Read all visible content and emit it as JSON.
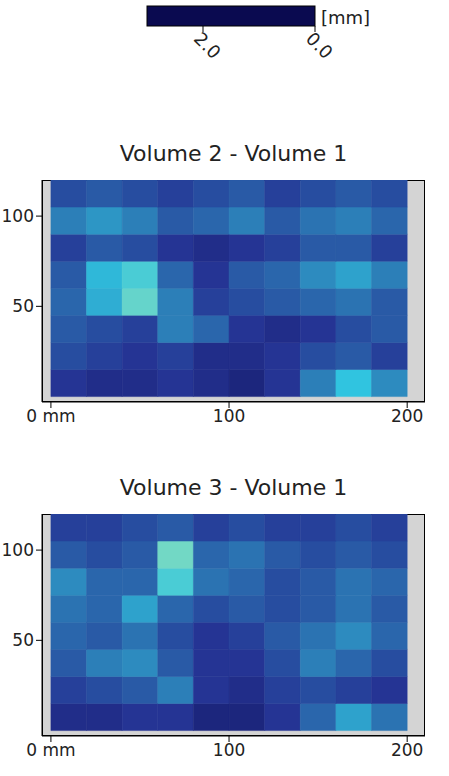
{
  "colorbar": {
    "label": "[mm]",
    "range": [
      0,
      3
    ],
    "ticks": [
      {
        "value": 2,
        "label": "2.0"
      },
      {
        "value": 0,
        "label": "0.0"
      }
    ],
    "colors": [
      "#0a0a50",
      "#253494",
      "#2c7fb8",
      "#30c4e0",
      "#7fdcc0",
      "#dcf08c"
    ]
  },
  "chart_data": [
    {
      "type": "heatmap",
      "title": "Volume 2 - Volume 1",
      "x": [
        10,
        30,
        50,
        70,
        90,
        110,
        130,
        150,
        170,
        190
      ],
      "y": [
        7.5,
        22.5,
        37.5,
        52.5,
        67.5,
        82.5,
        97.5,
        112.5
      ],
      "values": [
        [
          0.6,
          0.5,
          0.5,
          0.6,
          0.5,
          0.4,
          0.6,
          1.2,
          1.8,
          1.3
        ],
        [
          0.8,
          0.7,
          0.6,
          0.7,
          0.5,
          0.5,
          0.6,
          0.8,
          0.9,
          0.7
        ],
        [
          0.9,
          0.8,
          0.7,
          1.2,
          1.0,
          0.6,
          0.5,
          0.6,
          0.8,
          0.9
        ],
        [
          1.0,
          1.6,
          2.2,
          1.2,
          0.7,
          0.8,
          0.9,
          1.0,
          1.1,
          0.9
        ],
        [
          0.9,
          1.7,
          2.0,
          1.0,
          0.6,
          0.9,
          1.0,
          1.3,
          1.5,
          1.2
        ],
        [
          0.7,
          0.9,
          0.8,
          0.6,
          0.5,
          0.6,
          0.7,
          0.9,
          0.9,
          0.7
        ],
        [
          1.2,
          1.4,
          1.2,
          0.9,
          1.0,
          1.2,
          0.9,
          1.1,
          1.2,
          1.0
        ],
        [
          0.8,
          0.9,
          0.8,
          0.7,
          0.8,
          0.9,
          0.7,
          0.8,
          0.9,
          0.8
        ]
      ],
      "xlim": [
        -5,
        210
      ],
      "ylim": [
        -3,
        120
      ],
      "xticks": [
        {
          "value": 0,
          "label": "0 mm"
        },
        100,
        200
      ],
      "yticks": [
        50,
        100
      ]
    },
    {
      "type": "heatmap",
      "title": "Volume 3 - Volume 1",
      "x": [
        10,
        30,
        50,
        70,
        90,
        110,
        130,
        150,
        170,
        190
      ],
      "y": [
        7.5,
        22.5,
        37.5,
        52.5,
        67.5,
        82.5,
        97.5,
        112.5
      ],
      "values": [
        [
          0.5,
          0.5,
          0.6,
          0.6,
          0.4,
          0.4,
          0.6,
          1.0,
          1.5,
          1.1
        ],
        [
          0.7,
          0.8,
          0.9,
          1.2,
          0.6,
          0.5,
          0.7,
          0.8,
          0.7,
          0.6
        ],
        [
          0.9,
          1.2,
          1.3,
          0.9,
          0.6,
          0.6,
          0.8,
          1.2,
          1.0,
          0.8
        ],
        [
          1.0,
          0.9,
          1.1,
          0.8,
          0.6,
          0.7,
          0.9,
          1.1,
          1.3,
          1.0
        ],
        [
          1.1,
          1.0,
          1.5,
          1.0,
          0.8,
          0.9,
          0.8,
          0.9,
          1.1,
          0.9
        ],
        [
          1.3,
          1.0,
          1.0,
          2.0,
          1.1,
          1.0,
          0.8,
          0.9,
          1.1,
          1.0
        ],
        [
          0.9,
          0.8,
          0.9,
          2.3,
          1.0,
          1.1,
          0.9,
          0.8,
          0.9,
          0.8
        ],
        [
          0.7,
          0.7,
          0.8,
          0.9,
          0.7,
          0.8,
          0.7,
          0.7,
          0.8,
          0.7
        ]
      ],
      "xlim": [
        -5,
        210
      ],
      "ylim": [
        -3,
        120
      ],
      "xticks": [
        {
          "value": 0,
          "label": "0 mm"
        },
        100,
        200
      ],
      "yticks": [
        50,
        100
      ]
    }
  ]
}
